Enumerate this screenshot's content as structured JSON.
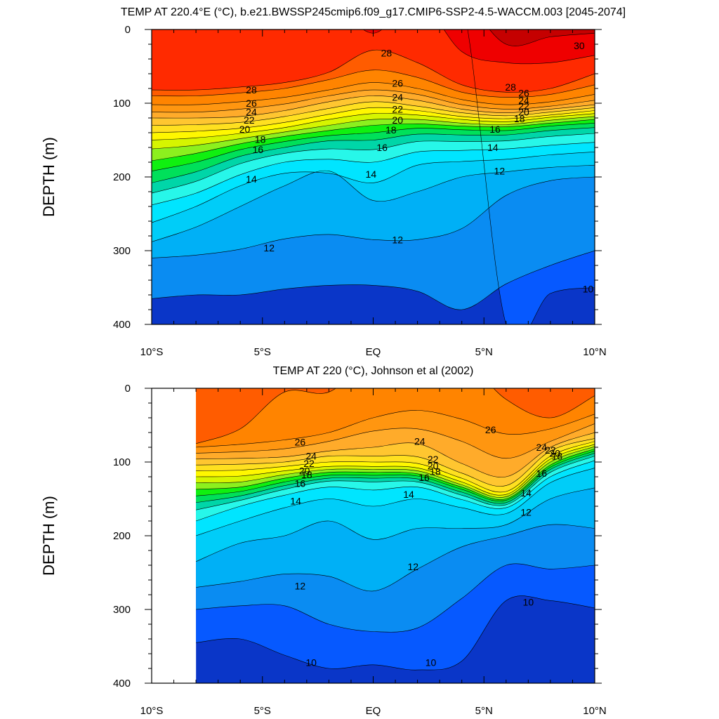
{
  "chart_data": [
    {
      "type": "heatmap",
      "subtype": "filled-contour",
      "title": "TEMP AT 220.4°E (°C), b.e21.BWSSP245cmip6.f09_g17.CMIP6-SSP2-4.5-WACCM.003 [2045-2074]",
      "ylabel": "DEPTH (m)",
      "xlabel": "",
      "x_range": [
        -10,
        10
      ],
      "y_range": [
        0,
        400
      ],
      "y_inverted": true,
      "x_ticks": [
        {
          "value": -10,
          "label": "10°S"
        },
        {
          "value": -5,
          "label": "5°S"
        },
        {
          "value": 0,
          "label": "EQ"
        },
        {
          "value": 5,
          "label": "5°N"
        },
        {
          "value": 10,
          "label": "10°N"
        }
      ],
      "y_ticks": [
        {
          "value": 0,
          "label": "0"
        },
        {
          "value": 100,
          "label": "100"
        },
        {
          "value": 200,
          "label": "200"
        },
        {
          "value": 300,
          "label": "300"
        },
        {
          "value": 400,
          "label": "400"
        }
      ],
      "data_x_min": -10,
      "x": [
        -10,
        -8,
        -6,
        -4,
        -2,
        0,
        2,
        4,
        6,
        8,
        10
      ],
      "isotherms": [
        {
          "t": 30,
          "depth": [
            null,
            null,
            null,
            null,
            null,
            null,
            null,
            null,
            20,
            10,
            5
          ]
        },
        {
          "t": 29,
          "depth": [
            null,
            null,
            null,
            null,
            null,
            5,
            null,
            30,
            45,
            45,
            35
          ]
        },
        {
          "t": 28,
          "depth": [
            82,
            82,
            78,
            72,
            58,
            28,
            45,
            75,
            85,
            80,
            60
          ]
        },
        {
          "t": 27,
          "depth": [
            90,
            90,
            86,
            80,
            68,
            55,
            65,
            85,
            92,
            88,
            75
          ]
        },
        {
          "t": 26,
          "depth": [
            102,
            102,
            98,
            92,
            82,
            72,
            80,
            95,
            102,
            98,
            88
          ]
        },
        {
          "t": 25,
          "depth": [
            112,
            112,
            108,
            101,
            90,
            82,
            88,
            102,
            108,
            104,
            96
          ]
        },
        {
          "t": 24,
          "depth": [
            120,
            120,
            118,
            110,
            98,
            90,
            96,
            108,
            113,
            108,
            102
          ]
        },
        {
          "t": 23,
          "depth": [
            130,
            129,
            126,
            118,
            107,
            98,
            104,
            113,
            117,
            112,
            106
          ]
        },
        {
          "t": 22,
          "depth": [
            140,
            138,
            134,
            126,
            115,
            106,
            110,
            118,
            121,
            116,
            110
          ]
        },
        {
          "t": 21,
          "depth": [
            150,
            147,
            141,
            133,
            122,
            114,
            116,
            122,
            125,
            119,
            114
          ]
        },
        {
          "t": 20,
          "depth": [
            162,
            157,
            148,
            139,
            130,
            122,
            122,
            127,
            129,
            123,
            118
          ]
        },
        {
          "t": 19,
          "depth": [
            178,
            168,
            155,
            145,
            137,
            130,
            128,
            131,
            132,
            127,
            122
          ]
        },
        {
          "t": 18,
          "depth": [
            192,
            180,
            163,
            152,
            144,
            140,
            134,
            136,
            137,
            131,
            127
          ]
        },
        {
          "t": 17,
          "depth": [
            208,
            193,
            172,
            160,
            151,
            150,
            142,
            143,
            143,
            137,
            133
          ]
        },
        {
          "t": 16,
          "depth": [
            222,
            206,
            182,
            168,
            162,
            163,
            152,
            152,
            151,
            145,
            141
          ]
        },
        {
          "t": 15,
          "depth": [
            238,
            222,
            197,
            180,
            176,
            180,
            166,
            164,
            162,
            157,
            153
          ]
        },
        {
          "t": 14,
          "depth": [
            262,
            240,
            212,
            195,
            195,
            208,
            184,
            179,
            176,
            170,
            166
          ]
        },
        {
          "t": 13,
          "depth": [
            288,
            268,
            240,
            212,
            192,
            232,
            220,
            200,
            193,
            187,
            184
          ]
        },
        {
          "t": 12,
          "depth": [
            310,
            306,
            298,
            284,
            278,
            285,
            285,
            270,
            225,
            205,
            200
          ]
        },
        {
          "t": 11,
          "depth": [
            365,
            360,
            360,
            352,
            347,
            347,
            355,
            380,
            345,
            320,
            300
          ]
        },
        {
          "t": 10,
          "depth": [
            null,
            null,
            null,
            null,
            null,
            null,
            null,
            null,
            400,
            358,
            350
          ]
        }
      ],
      "contour_labels": [
        {
          "text": "28",
          "x": 0.6,
          "y": 32
        },
        {
          "text": "30",
          "x": 9.3,
          "y": 22
        },
        {
          "text": "28",
          "x": -5.5,
          "y": 82
        },
        {
          "text": "28",
          "x": 6.2,
          "y": 78
        },
        {
          "text": "26",
          "x": 1.1,
          "y": 73
        },
        {
          "text": "24",
          "x": 1.1,
          "y": 92
        },
        {
          "text": "22",
          "x": 1.1,
          "y": 108
        },
        {
          "text": "20",
          "x": 1.1,
          "y": 123
        },
        {
          "text": "18",
          "x": 0.8,
          "y": 136
        },
        {
          "text": "16",
          "x": 0.4,
          "y": 160
        },
        {
          "text": "14",
          "x": -0.1,
          "y": 196
        },
        {
          "text": "26",
          "x": -5.5,
          "y": 100
        },
        {
          "text": "24",
          "x": -5.5,
          "y": 112
        },
        {
          "text": "22",
          "x": -5.6,
          "y": 123
        },
        {
          "text": "20",
          "x": -5.8,
          "y": 135
        },
        {
          "text": "18",
          "x": -5.1,
          "y": 149
        },
        {
          "text": "16",
          "x": -5.2,
          "y": 163
        },
        {
          "text": "14",
          "x": -5.5,
          "y": 203
        },
        {
          "text": "12",
          "x": -4.7,
          "y": 296
        },
        {
          "text": "12",
          "x": 1.1,
          "y": 285
        },
        {
          "text": "26",
          "x": 6.8,
          "y": 86
        },
        {
          "text": "24",
          "x": 6.8,
          "y": 96
        },
        {
          "text": "22",
          "x": 6.8,
          "y": 104
        },
        {
          "text": "20",
          "x": 6.8,
          "y": 112
        },
        {
          "text": "18",
          "x": 6.6,
          "y": 121
        },
        {
          "text": "16",
          "x": 5.5,
          "y": 135
        },
        {
          "text": "14",
          "x": 5.4,
          "y": 160
        },
        {
          "text": "12",
          "x": 5.7,
          "y": 192
        },
        {
          "text": "10",
          "x": 9.7,
          "y": 352
        }
      ]
    },
    {
      "type": "heatmap",
      "subtype": "filled-contour",
      "title": "TEMP AT 220 (°C), Johnson et al (2002)",
      "ylabel": "DEPTH (m)",
      "xlabel": "",
      "x_range": [
        -10,
        10
      ],
      "y_range": [
        0,
        400
      ],
      "y_inverted": true,
      "x_ticks": [
        {
          "value": -10,
          "label": "10°S"
        },
        {
          "value": -5,
          "label": "5°S"
        },
        {
          "value": 0,
          "label": "EQ"
        },
        {
          "value": 5,
          "label": "5°N"
        },
        {
          "value": 10,
          "label": "10°N"
        }
      ],
      "y_ticks": [
        {
          "value": 0,
          "label": "0"
        },
        {
          "value": 100,
          "label": "100"
        },
        {
          "value": 200,
          "label": "200"
        },
        {
          "value": 300,
          "label": "300"
        },
        {
          "value": 400,
          "label": "400"
        }
      ],
      "data_x_min": -8,
      "x": [
        -8,
        -6,
        -4,
        -2,
        0,
        2,
        4,
        6,
        8,
        10
      ],
      "isotherms": [
        {
          "t": 27,
          "depth": [
            75,
            55,
            5,
            5,
            null,
            null,
            null,
            15,
            40,
            10
          ]
        },
        {
          "t": 26,
          "depth": [
            80,
            76,
            70,
            60,
            40,
            30,
            42,
            62,
            55,
            35
          ]
        },
        {
          "t": 25,
          "depth": [
            88,
            86,
            82,
            72,
            58,
            55,
            72,
            95,
            72,
            48
          ]
        },
        {
          "t": 24,
          "depth": [
            96,
            95,
            93,
            85,
            80,
            75,
            102,
            120,
            80,
            60
          ]
        },
        {
          "t": 23,
          "depth": [
            104,
            103,
            100,
            92,
            92,
            93,
            115,
            132,
            85,
            68
          ]
        },
        {
          "t": 22,
          "depth": [
            112,
            111,
            106,
            100,
            100,
            102,
            122,
            140,
            92,
            72
          ]
        },
        {
          "t": 21,
          "depth": [
            120,
            119,
            112,
            106,
            106,
            108,
            127,
            144,
            96,
            76
          ]
        },
        {
          "t": 20,
          "depth": [
            128,
            127,
            117,
            110,
            110,
            112,
            131,
            147,
            100,
            79
          ]
        },
        {
          "t": 19,
          "depth": [
            137,
            134,
            122,
            114,
            114,
            116,
            134,
            150,
            104,
            82
          ]
        },
        {
          "t": 18,
          "depth": [
            146,
            140,
            127,
            118,
            118,
            119,
            137,
            152,
            107,
            85
          ]
        },
        {
          "t": 17,
          "depth": [
            155,
            146,
            132,
            122,
            122,
            123,
            141,
            155,
            110,
            88
          ]
        },
        {
          "t": 16,
          "depth": [
            165,
            152,
            137,
            126,
            127,
            127,
            145,
            158,
            114,
            92
          ]
        },
        {
          "t": 15,
          "depth": [
            180,
            160,
            145,
            134,
            138,
            134,
            151,
            162,
            120,
            98
          ]
        },
        {
          "t": 14,
          "depth": [
            200,
            180,
            162,
            150,
            160,
            150,
            162,
            170,
            128,
            108
          ]
        },
        {
          "t": 13,
          "depth": [
            235,
            210,
            200,
            180,
            205,
            190,
            190,
            185,
            150,
            135
          ]
        },
        {
          "t": 12,
          "depth": [
            270,
            262,
            252,
            255,
            275,
            245,
            215,
            200,
            185,
            190
          ]
        },
        {
          "t": 11,
          "depth": [
            300,
            295,
            295,
            320,
            330,
            325,
            285,
            240,
            245,
            240
          ]
        },
        {
          "t": 10,
          "depth": [
            345,
            340,
            362,
            380,
            375,
            382,
            370,
            288,
            288,
            298
          ]
        }
      ],
      "contour_labels": [
        {
          "text": "26",
          "x": 5.3,
          "y": 56
        },
        {
          "text": "24",
          "x": 2.1,
          "y": 72
        },
        {
          "text": "26",
          "x": -3.3,
          "y": 73
        },
        {
          "text": "24",
          "x": -2.8,
          "y": 92
        },
        {
          "text": "22",
          "x": -2.9,
          "y": 102
        },
        {
          "text": "20",
          "x": -3.1,
          "y": 112
        },
        {
          "text": "18",
          "x": -3.0,
          "y": 117
        },
        {
          "text": "16",
          "x": -3.3,
          "y": 129
        },
        {
          "text": "14",
          "x": -3.5,
          "y": 153
        },
        {
          "text": "22",
          "x": 2.7,
          "y": 96
        },
        {
          "text": "20",
          "x": 2.7,
          "y": 105
        },
        {
          "text": "18",
          "x": 2.8,
          "y": 113
        },
        {
          "text": "16",
          "x": 2.3,
          "y": 121
        },
        {
          "text": "14",
          "x": 1.6,
          "y": 144
        },
        {
          "text": "24",
          "x": 7.6,
          "y": 80
        },
        {
          "text": "22",
          "x": 8.0,
          "y": 84
        },
        {
          "text": "20",
          "x": 8.2,
          "y": 88
        },
        {
          "text": "18",
          "x": 8.3,
          "y": 92
        },
        {
          "text": "16",
          "x": 7.6,
          "y": 115
        },
        {
          "text": "14",
          "x": 6.9,
          "y": 142
        },
        {
          "text": "12",
          "x": 6.9,
          "y": 168
        },
        {
          "text": "12",
          "x": -3.3,
          "y": 268
        },
        {
          "text": "12",
          "x": 1.8,
          "y": 242
        },
        {
          "text": "10",
          "x": 7.0,
          "y": 290
        },
        {
          "text": "10",
          "x": -2.8,
          "y": 372
        },
        {
          "text": "10",
          "x": 2.6,
          "y": 372
        }
      ]
    }
  ]
}
